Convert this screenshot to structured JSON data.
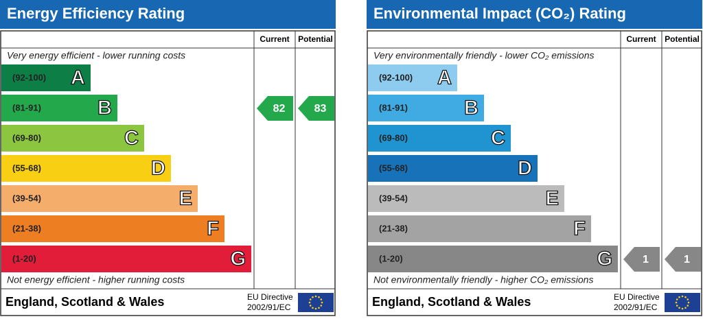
{
  "panels": [
    {
      "title": "Energy Efficiency Rating",
      "columns": [
        "Current",
        "Potential"
      ],
      "top_note": "Very energy efficient - lower running costs",
      "bottom_note": "Not energy efficient - higher running costs",
      "bands": [
        {
          "range": "(92-100)",
          "letter": "A",
          "color": "#0d7f46"
        },
        {
          "range": "(81-91)",
          "letter": "B",
          "color": "#23a94c"
        },
        {
          "range": "(69-80)",
          "letter": "C",
          "color": "#8cc540"
        },
        {
          "range": "(55-68)",
          "letter": "D",
          "color": "#f9cf14"
        },
        {
          "range": "(39-54)",
          "letter": "E",
          "color": "#f5ad6c"
        },
        {
          "range": "(21-38)",
          "letter": "F",
          "color": "#ee7e22"
        },
        {
          "range": "(1-20)",
          "letter": "G",
          "color": "#e21d3a"
        }
      ],
      "current": 82,
      "potential": 83,
      "footer": "England, Scotland & Wales",
      "directive": [
        "EU Directive",
        "2002/91/EC"
      ]
    },
    {
      "title": "Environmental Impact (CO₂) Rating",
      "columns": [
        "Current",
        "Potential"
      ],
      "top_note": "Very environmentally friendly - lower CO₂ emissions",
      "bottom_note": "Not environmentally friendly - higher CO₂ emissions",
      "bands": [
        {
          "range": "(92-100)",
          "letter": "A",
          "color": "#8dcbef"
        },
        {
          "range": "(81-91)",
          "letter": "B",
          "color": "#40aae2"
        },
        {
          "range": "(69-80)",
          "letter": "C",
          "color": "#1f94d0"
        },
        {
          "range": "(55-68)",
          "letter": "D",
          "color": "#1772b9"
        },
        {
          "range": "(39-54)",
          "letter": "E",
          "color": "#bbbbbb"
        },
        {
          "range": "(21-38)",
          "letter": "F",
          "color": "#a3a3a3"
        },
        {
          "range": "(1-20)",
          "letter": "G",
          "color": "#878787"
        }
      ],
      "current": 1,
      "potential": 1,
      "footer": "England, Scotland & Wales",
      "directive": [
        "EU Directive",
        "2002/91/EC"
      ]
    }
  ]
}
